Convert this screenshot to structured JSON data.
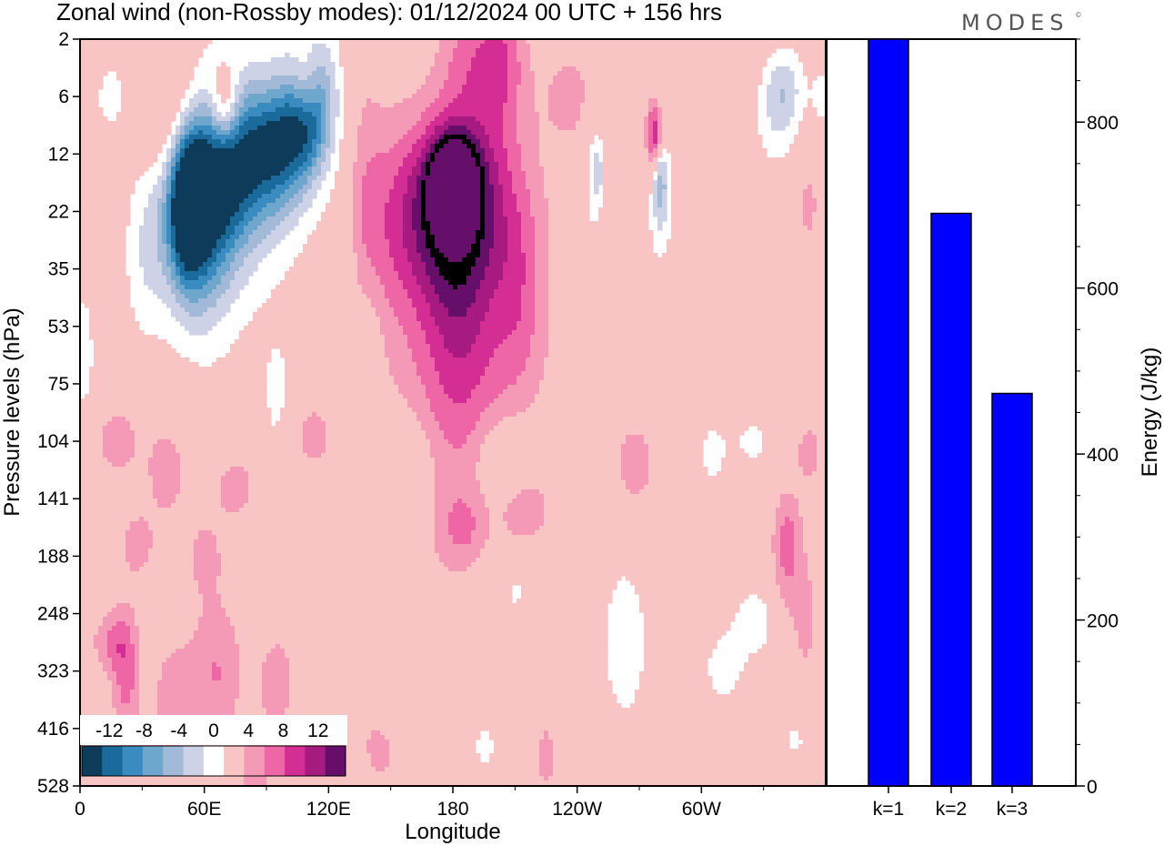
{
  "chart_data": [
    {
      "type": "heatmap",
      "title": "Zonal wind (non-Rossby modes):  01/12/2024  00 UTC  + 156 hrs",
      "brand": "MODES",
      "brand_mark": "©",
      "xlabel": "Longitude",
      "ylabel": "Pressure levels (hPa)",
      "x_ticks": [
        "0",
        "60E",
        "120E",
        "180",
        "120W",
        "60W"
      ],
      "x_tick_values": [
        0,
        60,
        120,
        180,
        240,
        300
      ],
      "xlim": [
        0,
        360
      ],
      "y_ticks": [
        "2",
        "6",
        "12",
        "22",
        "35",
        "53",
        "75",
        "104",
        "141",
        "188",
        "248",
        "323",
        "416",
        "528"
      ],
      "colorbar": {
        "labels": [
          "-12",
          "-8",
          "-4",
          "0",
          "4",
          "8",
          "12"
        ],
        "levels": [
          -14,
          -12,
          -10,
          -8,
          -6,
          -4,
          -2,
          2,
          4,
          6,
          8,
          10,
          12,
          14
        ],
        "colors": [
          "#0f3b5a",
          "#1b6a9c",
          "#3a8cc0",
          "#6fa6cc",
          "#a3b9d8",
          "#cdd2e6",
          "#ffffff",
          "#f9c4c4",
          "#f49ab6",
          "#ee66a6",
          "#d42e94",
          "#a71a7f",
          "#650f6a"
        ]
      },
      "blobs": [
        {
          "lon": 178,
          "p": 3.1,
          "w": 24,
          "h": 1.2,
          "v": 11.5
        },
        {
          "lon": 180,
          "p": 2.5,
          "w": 8,
          "h": 0.55,
          "v": 13
        },
        {
          "lon": 176,
          "p": 4.4,
          "w": 15,
          "h": 3.5,
          "v": 5
        },
        {
          "lon": 196,
          "p": 0.2,
          "w": 11,
          "h": 0.6,
          "v": 5
        },
        {
          "lon": 168,
          "p": 3.3,
          "w": 10,
          "h": 3,
          "v": -2.8
        },
        {
          "lon": 192,
          "p": 0.0,
          "w": 6,
          "h": 0.7,
          "v": -2
        },
        {
          "lon": 52,
          "p": 2.8,
          "w": 6,
          "h": 0.9,
          "v": -12
        },
        {
          "lon": 60,
          "p": 2.6,
          "w": 9,
          "h": 1.2,
          "v": -12
        },
        {
          "lon": 75,
          "p": 2.2,
          "w": 9,
          "h": 1.0,
          "v": -10
        },
        {
          "lon": 92,
          "p": 1.8,
          "w": 9,
          "h": 0.9,
          "v": -11
        },
        {
          "lon": 107,
          "p": 1.4,
          "w": 8,
          "h": 0.8,
          "v": -12
        },
        {
          "lon": 116,
          "p": 0.9,
          "w": 6,
          "h": 0.7,
          "v": -6
        },
        {
          "lon": 85,
          "p": 2.0,
          "w": 28,
          "h": 2.0,
          "v": -3
        },
        {
          "lon": 45,
          "p": 3.3,
          "w": 10,
          "h": 1.0,
          "v": -4
        },
        {
          "lon": 30,
          "p": 3.8,
          "w": 7,
          "h": 1.2,
          "v": -2.5
        },
        {
          "lon": 60,
          "p": 4.0,
          "w": 15,
          "h": 1.4,
          "v": -2.2
        },
        {
          "lon": 15,
          "p": 1.0,
          "w": 6,
          "h": 0.5,
          "v": -3
        },
        {
          "lon": 95,
          "p": 6.3,
          "w": 5,
          "h": 0.8,
          "v": -2.5
        },
        {
          "lon": 128,
          "p": 5.0,
          "w": 6,
          "h": 2.8,
          "v": -2.5
        },
        {
          "lon": 140,
          "p": 5.8,
          "w": 4,
          "h": 1.2,
          "v": -2.5
        },
        {
          "lon": 2,
          "p": 5.5,
          "w": 4,
          "h": 1.0,
          "v": -3
        },
        {
          "lon": 50,
          "p": 1.3,
          "w": 14,
          "h": 0.8,
          "v": 4.2
        },
        {
          "lon": 70,
          "p": 1.2,
          "w": 5,
          "h": 0.5,
          "v": 7
        },
        {
          "lon": 95,
          "p": 0.9,
          "w": 12,
          "h": 0.6,
          "v": 3.5
        },
        {
          "lon": 110,
          "p": 0.8,
          "w": 6,
          "h": 0.5,
          "v": 6
        },
        {
          "lon": 202,
          "p": 0.8,
          "w": 10,
          "h": 0.9,
          "v": 3.2
        },
        {
          "lon": 136,
          "p": 3.0,
          "w": 7,
          "h": 2.2,
          "v": 2.8
        },
        {
          "lon": 190,
          "p": 5.6,
          "w": 26,
          "h": 1.1,
          "v": 3.2
        },
        {
          "lon": 212,
          "p": 4.5,
          "w": 8,
          "h": 1.2,
          "v": 2.6
        },
        {
          "lon": 238,
          "p": 1.0,
          "w": 10,
          "h": 0.6,
          "v": 3
        },
        {
          "lon": 278,
          "p": 1.7,
          "w": 5,
          "h": 0.7,
          "v": 4.5
        },
        {
          "lon": 278,
          "p": 1.7,
          "w": 2.5,
          "h": 0.4,
          "v": 8
        },
        {
          "lon": 280,
          "p": 2.3,
          "w": 6,
          "h": 1.3,
          "v": -3.5
        },
        {
          "lon": 280,
          "p": 2.3,
          "w": 2.5,
          "h": 0.6,
          "v": -7
        },
        {
          "lon": 247,
          "p": 2.4,
          "w": 4,
          "h": 1.2,
          "v": -2.5
        },
        {
          "lon": 250,
          "p": 2.3,
          "w": 2,
          "h": 0.4,
          "v": -4
        },
        {
          "lon": 336,
          "p": 1.5,
          "w": 8,
          "h": 0.6,
          "v": -3
        },
        {
          "lon": 340,
          "p": 0.8,
          "w": 7,
          "h": 0.5,
          "v": -4.5
        },
        {
          "lon": 352,
          "p": 2.9,
          "w": 4,
          "h": 0.7,
          "v": 2.5
        },
        {
          "lon": 358,
          "p": 1.0,
          "w": 4,
          "h": 0.5,
          "v": -2.5
        },
        {
          "lon": 14,
          "p": 10.5,
          "w": 6,
          "h": 0.35,
          "v": 3.5
        },
        {
          "lon": 22,
          "p": 11.0,
          "w": 5,
          "h": 0.8,
          "v": 5
        },
        {
          "lon": 66,
          "p": 11.0,
          "w": 9,
          "h": 0.9,
          "v": 4
        },
        {
          "lon": 45,
          "p": 11.5,
          "w": 8,
          "h": 0.8,
          "v": 3
        },
        {
          "lon": 85,
          "p": 12.8,
          "w": 6,
          "h": 0.5,
          "v": 3
        },
        {
          "lon": 95,
          "p": 11.2,
          "w": 7,
          "h": 0.7,
          "v": 3
        },
        {
          "lon": 145,
          "p": 12.2,
          "w": 7,
          "h": 0.6,
          "v": 3.5
        },
        {
          "lon": 147,
          "p": 11.5,
          "w": 6,
          "h": 0.6,
          "v": -2.5
        },
        {
          "lon": 195,
          "p": 12.3,
          "w": 7,
          "h": 0.5,
          "v": -2.5
        },
        {
          "lon": 225,
          "p": 12.5,
          "w": 5,
          "h": 0.6,
          "v": 2.6
        },
        {
          "lon": 263,
          "p": 10.5,
          "w": 8,
          "h": 1.0,
          "v": -3.8
        },
        {
          "lon": 310,
          "p": 11.0,
          "w": 8,
          "h": 0.5,
          "v": -2.6
        },
        {
          "lon": 328,
          "p": 10.1,
          "w": 12,
          "h": 0.6,
          "v": -2.7
        },
        {
          "lon": 340,
          "p": 9.4,
          "w": 5,
          "h": 0.8,
          "v": 3
        },
        {
          "lon": 350,
          "p": 10.1,
          "w": 5,
          "h": 0.8,
          "v": 3
        },
        {
          "lon": 18,
          "p": 7.0,
          "w": 9,
          "h": 0.5,
          "v": 3
        },
        {
          "lon": 42,
          "p": 7.5,
          "w": 7,
          "h": 0.6,
          "v": 3.2
        },
        {
          "lon": 75,
          "p": 7.8,
          "w": 9,
          "h": 0.5,
          "v": 2.8
        },
        {
          "lon": 115,
          "p": 6.9,
          "w": 10,
          "h": 0.5,
          "v": 3
        },
        {
          "lon": 155,
          "p": 7.4,
          "w": 11,
          "h": 0.6,
          "v": -2.6
        },
        {
          "lon": 205,
          "p": 7.3,
          "w": 9,
          "h": 0.5,
          "v": -2.5
        },
        {
          "lon": 215,
          "p": 8.2,
          "w": 10,
          "h": 0.5,
          "v": 3
        },
        {
          "lon": 268,
          "p": 7.4,
          "w": 8,
          "h": 0.6,
          "v": 3
        },
        {
          "lon": 305,
          "p": 7.2,
          "w": 6,
          "h": 0.5,
          "v": -2.6
        },
        {
          "lon": 352,
          "p": 7.2,
          "w": 5,
          "h": 0.4,
          "v": 3
        },
        {
          "lon": 28,
          "p": 8.8,
          "w": 7,
          "h": 0.5,
          "v": 2.7
        },
        {
          "lon": 60,
          "p": 9.0,
          "w": 7,
          "h": 0.5,
          "v": 2.6
        },
        {
          "lon": 185,
          "p": 8.5,
          "w": 7,
          "h": 0.4,
          "v": 3
        },
        {
          "lon": 210,
          "p": 9.6,
          "w": 6,
          "h": 0.4,
          "v": -2.4
        },
        {
          "lon": 325,
          "p": 7.0,
          "w": 8,
          "h": 0.4,
          "v": -2.5
        },
        {
          "lon": 342,
          "p": 8.6,
          "w": 5,
          "h": 0.6,
          "v": 3
        },
        {
          "lon": 345,
          "p": 12.2,
          "w": 5,
          "h": 0.3,
          "v": -2.5
        },
        {
          "lon": 30,
          "p": 12.5,
          "w": 8,
          "h": 0.4,
          "v": 2.6
        }
      ]
    },
    {
      "type": "bar",
      "categories": [
        "k=1",
        "k=2",
        "k=3"
      ],
      "values": [
        900,
        690,
        473
      ],
      "ylabel": "Energy (J/kg)",
      "ylim": [
        0,
        900
      ],
      "y_ticks": [
        0,
        200,
        400,
        600,
        800
      ],
      "bar_color": "#0000ff"
    }
  ]
}
